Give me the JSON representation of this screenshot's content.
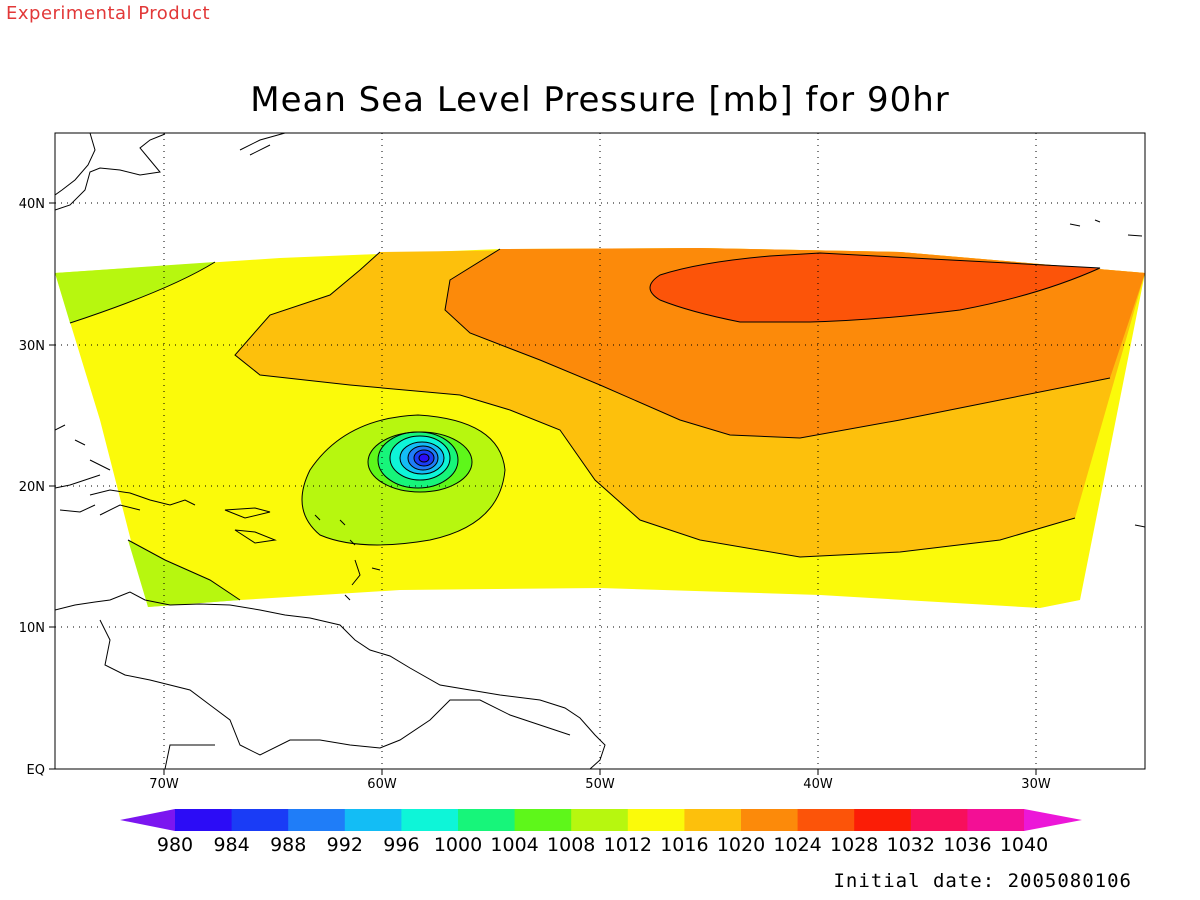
{
  "header": {
    "experimental_label": "Experimental Product",
    "title": "Mean Sea Level Pressure [mb] for 90hr"
  },
  "footer": {
    "initial_date": "Initial date: 2005080106"
  },
  "map": {
    "lon_labels": [
      "70W",
      "60W",
      "50W",
      "40W",
      "30W"
    ],
    "lat_labels": [
      "40N",
      "30N",
      "20N",
      "10N",
      "EQ"
    ],
    "lon_range": [
      -75,
      -25
    ],
    "lat_range": [
      0,
      45
    ],
    "grid": "dotted",
    "features": [
      "low-pressure-center-near-58W-22N",
      "high-pressure-near-40W-34N"
    ]
  },
  "colorbar": {
    "levels": [
      "980",
      "984",
      "988",
      "992",
      "996",
      "1000",
      "1004",
      "1008",
      "1012",
      "1016",
      "1020",
      "1024",
      "1028",
      "1032",
      "1036",
      "1040"
    ],
    "colors": [
      "#7b16f0",
      "#2c0cf6",
      "#1a3cf6",
      "#1f7df8",
      "#13bdf5",
      "#0ef5d8",
      "#17f57a",
      "#5ef71a",
      "#b7f70f",
      "#fbfa0a",
      "#fdc00c",
      "#fc8a0a",
      "#fc5409",
      "#fb1d06",
      "#f70f5c",
      "#f30f95",
      "#ec17d8"
    ]
  }
}
